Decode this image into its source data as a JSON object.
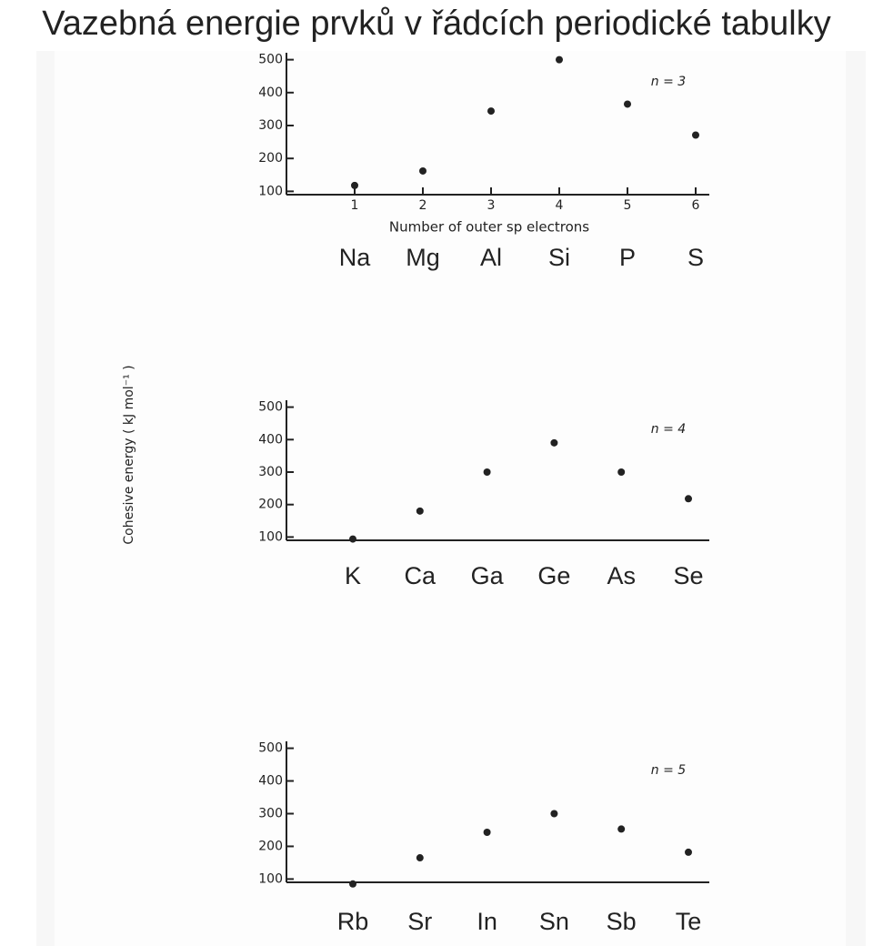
{
  "title": "Vazebná energie prvků v řádcích periodické tabulky",
  "y_label": "Cohesive energy ( kJ mol⁻¹ )",
  "chart_data": [
    {
      "type": "scatter",
      "annotation": "n = 3",
      "x_label": "Number of outer sp electrons",
      "x": [
        1,
        2,
        3,
        4,
        5,
        6
      ],
      "xticks": [
        1,
        2,
        3,
        4,
        5,
        6
      ],
      "xlim": [
        0,
        6.2
      ],
      "categories": [
        "Na",
        "Mg",
        "Al",
        "Si",
        "P",
        "S"
      ],
      "values": [
        118,
        162,
        344,
        500,
        365,
        271
      ],
      "ylim": [
        90,
        510
      ],
      "yticks": [
        100,
        200,
        300,
        400,
        500
      ],
      "color": "#222222"
    },
    {
      "type": "scatter",
      "annotation": "n = 4",
      "categories": [
        "K",
        "Ca",
        "Ga",
        "Ge",
        "As",
        "Se"
      ],
      "values": [
        94,
        180,
        300,
        390,
        300,
        218
      ],
      "ylim": [
        90,
        510
      ],
      "yticks": [
        100,
        200,
        300,
        400,
        500
      ],
      "color": "#222222"
    },
    {
      "type": "scatter",
      "annotation": "n = 5",
      "categories": [
        "Rb",
        "Sr",
        "In",
        "Sn",
        "Sb",
        "Te"
      ],
      "values": [
        85,
        165,
        243,
        300,
        253,
        182
      ],
      "ylim": [
        90,
        510
      ],
      "yticks": [
        100,
        200,
        300,
        400,
        500
      ],
      "color": "#222222"
    }
  ]
}
